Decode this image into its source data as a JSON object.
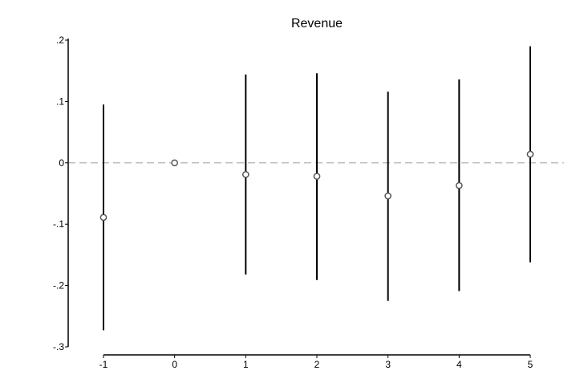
{
  "chart_data": {
    "type": "scatter",
    "subtype": "coefficient-plot-with-confidence-intervals",
    "title": "Revenue",
    "xlabel": "",
    "ylabel": "",
    "x": [
      -1,
      0,
      1,
      2,
      3,
      4,
      5
    ],
    "estimates": [
      -0.089,
      0.0,
      -0.019,
      -0.022,
      -0.054,
      -0.037,
      0.014
    ],
    "ci_low": [
      -0.273,
      0.0,
      -0.182,
      -0.191,
      -0.225,
      -0.209,
      -0.162
    ],
    "ci_high": [
      0.095,
      0.0,
      0.144,
      0.146,
      0.116,
      0.136,
      0.19
    ],
    "xticks": [
      -1,
      0,
      1,
      2,
      3,
      4,
      5
    ],
    "xtick_labels": [
      "-1",
      "0",
      "1",
      "2",
      "3",
      "4",
      "5"
    ],
    "yticks": [
      0.2,
      0.1,
      0,
      -0.1,
      -0.2,
      -0.3
    ],
    "ytick_labels": [
      ".2",
      ".1",
      "0",
      "-.1",
      "-.2",
      "-.3"
    ],
    "xlim": [
      -1,
      5
    ],
    "ylim": [
      -0.3,
      0.2
    ],
    "reference_line": {
      "y": 0,
      "style": "dashed"
    },
    "grid": false,
    "colors": {
      "marker": "#555555",
      "ci_line": "#000000",
      "axis": "#000000",
      "reference_line": "#aaaaaa"
    }
  }
}
